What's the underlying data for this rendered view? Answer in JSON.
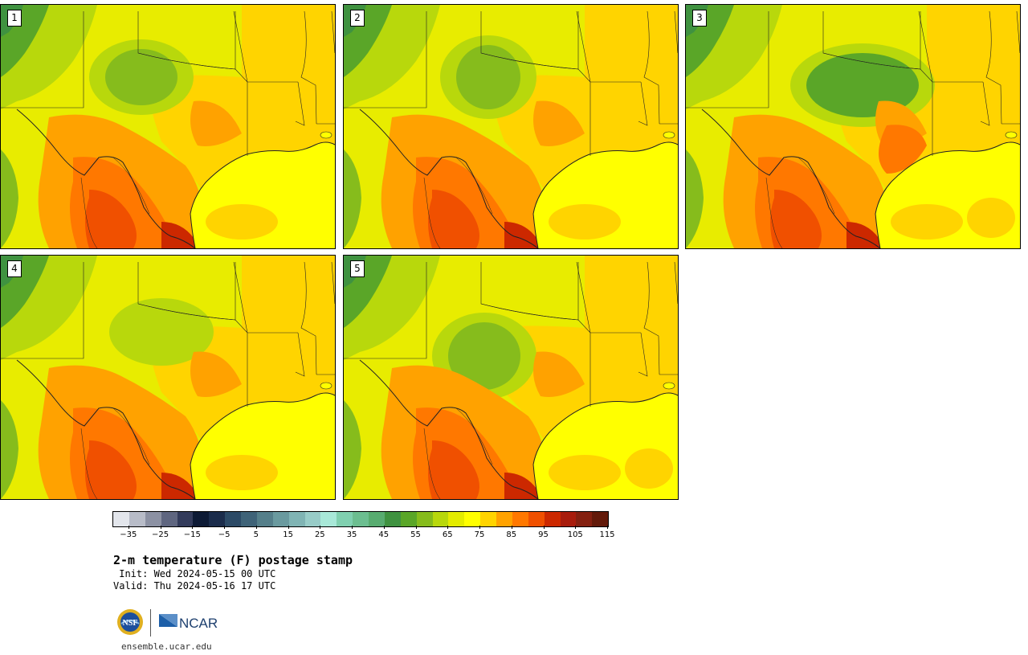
{
  "panels": [
    {
      "label": "1",
      "variant": 0
    },
    {
      "label": "2",
      "variant": 1
    },
    {
      "label": "3",
      "variant": 2
    },
    {
      "label": "4",
      "variant": 3
    },
    {
      "label": "5",
      "variant": 4
    }
  ],
  "colorbar": {
    "colors": [
      "#e3e6ec",
      "#b8bcc8",
      "#8c91a3",
      "#5f6680",
      "#333b5b",
      "#0d1a35",
      "#1b2c4b",
      "#2c4a66",
      "#3f6378",
      "#557f8a",
      "#6a9a9f",
      "#80b4b4",
      "#98ccc8",
      "#a8e8d8",
      "#80d0b0",
      "#6cbe90",
      "#58ac70",
      "#3f9240",
      "#5aa628",
      "#86bc1c",
      "#b8d80c",
      "#e4ec00",
      "#ffff00",
      "#ffd400",
      "#ffa200",
      "#ff7800",
      "#f05000",
      "#cc2800",
      "#a81c0c",
      "#842010",
      "#631a0a"
    ],
    "tick_labels": [
      "−35",
      "−25",
      "−15",
      "−5",
      "5",
      "15",
      "25",
      "35",
      "45",
      "55",
      "65",
      "75",
      "85",
      "95",
      "105",
      "115"
    ]
  },
  "title": "2-m temperature (F) postage stamp",
  "init": " Init: Wed 2024-05-15 00 UTC",
  "valid": "Valid: Thu 2024-05-16 17 UTC",
  "logos": {
    "nsf": "NSF",
    "ncar": "NCAR"
  },
  "site": "ensemble.ucar.edu"
}
